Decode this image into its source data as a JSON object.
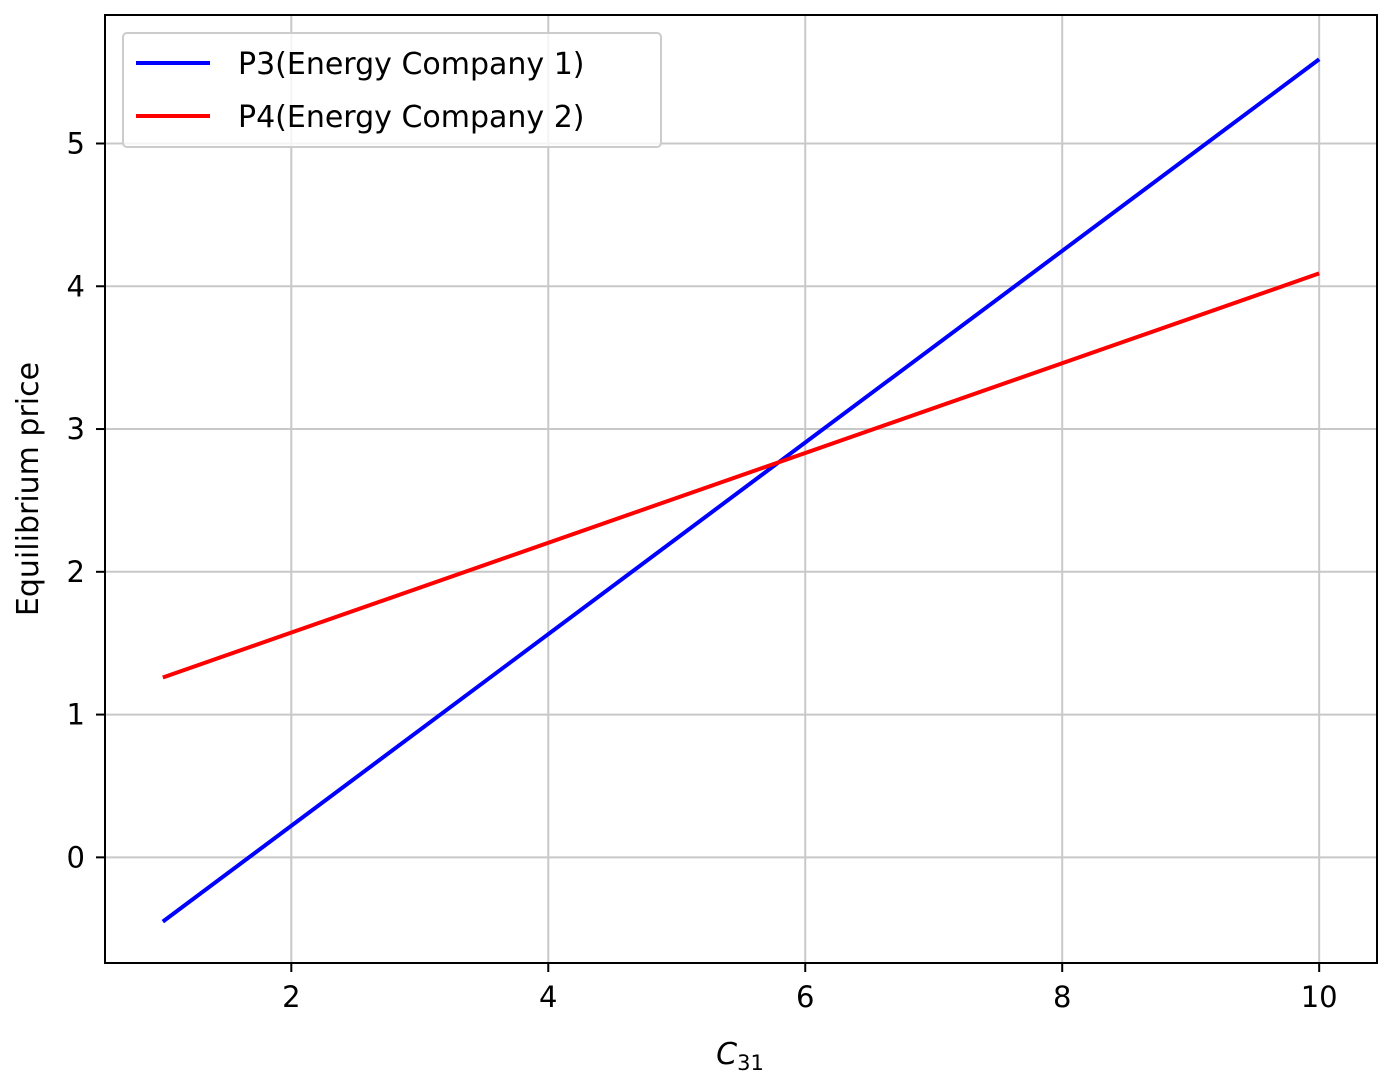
{
  "chart_data": {
    "type": "line",
    "title": "",
    "xlabel": "C",
    "xlabel_subscript": "31",
    "ylabel": "Equilibrium price",
    "xlim": [
      0.55,
      10.45
    ],
    "ylim": [
      -0.74,
      5.9
    ],
    "xticks": [
      2,
      4,
      6,
      8,
      10
    ],
    "yticks": [
      0,
      1,
      2,
      3,
      4,
      5
    ],
    "grid": true,
    "legend_position": "top-left",
    "series": [
      {
        "name": "P3(Energy Company 1)",
        "color": "#0000ff",
        "x": [
          1,
          10
        ],
        "y": [
          -0.45,
          5.59
        ]
      },
      {
        "name": "P4(Energy Company 2)",
        "color": "#ff0000",
        "x": [
          1,
          10
        ],
        "y": [
          1.26,
          4.09
        ]
      }
    ]
  }
}
